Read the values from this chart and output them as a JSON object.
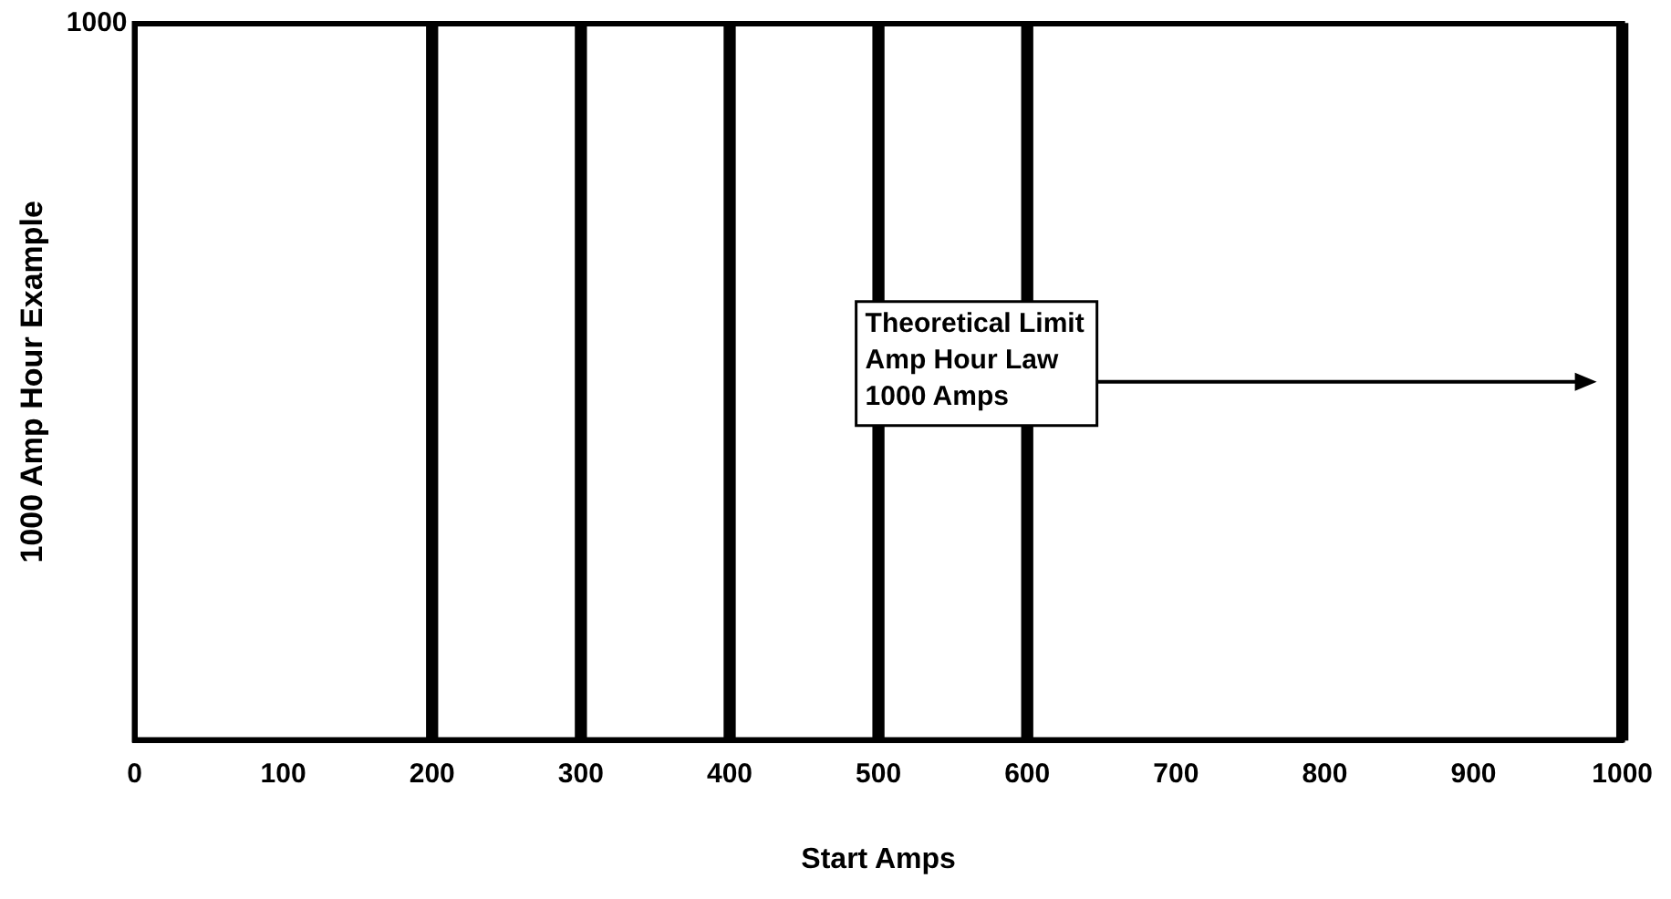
{
  "chart_data": {
    "type": "bar",
    "xlabel": "Start Amps",
    "ylabel": "1000 Amp Hour Example",
    "xlim": [
      0,
      1000
    ],
    "xticks": [
      0,
      100,
      200,
      300,
      400,
      500,
      600,
      700,
      800,
      900,
      1000
    ],
    "ylim": [
      0,
      1000
    ],
    "yticks": [
      1000
    ],
    "series": [
      {
        "color": "#000000",
        "x": [
          200,
          300,
          400,
          500,
          600,
          1000
        ],
        "values": [
          1000,
          1000,
          1000,
          1000,
          1000,
          1000
        ]
      }
    ],
    "annotations": [
      "Theoretical Limit\nAmp Hour Law\n1000 Amps"
    ]
  }
}
